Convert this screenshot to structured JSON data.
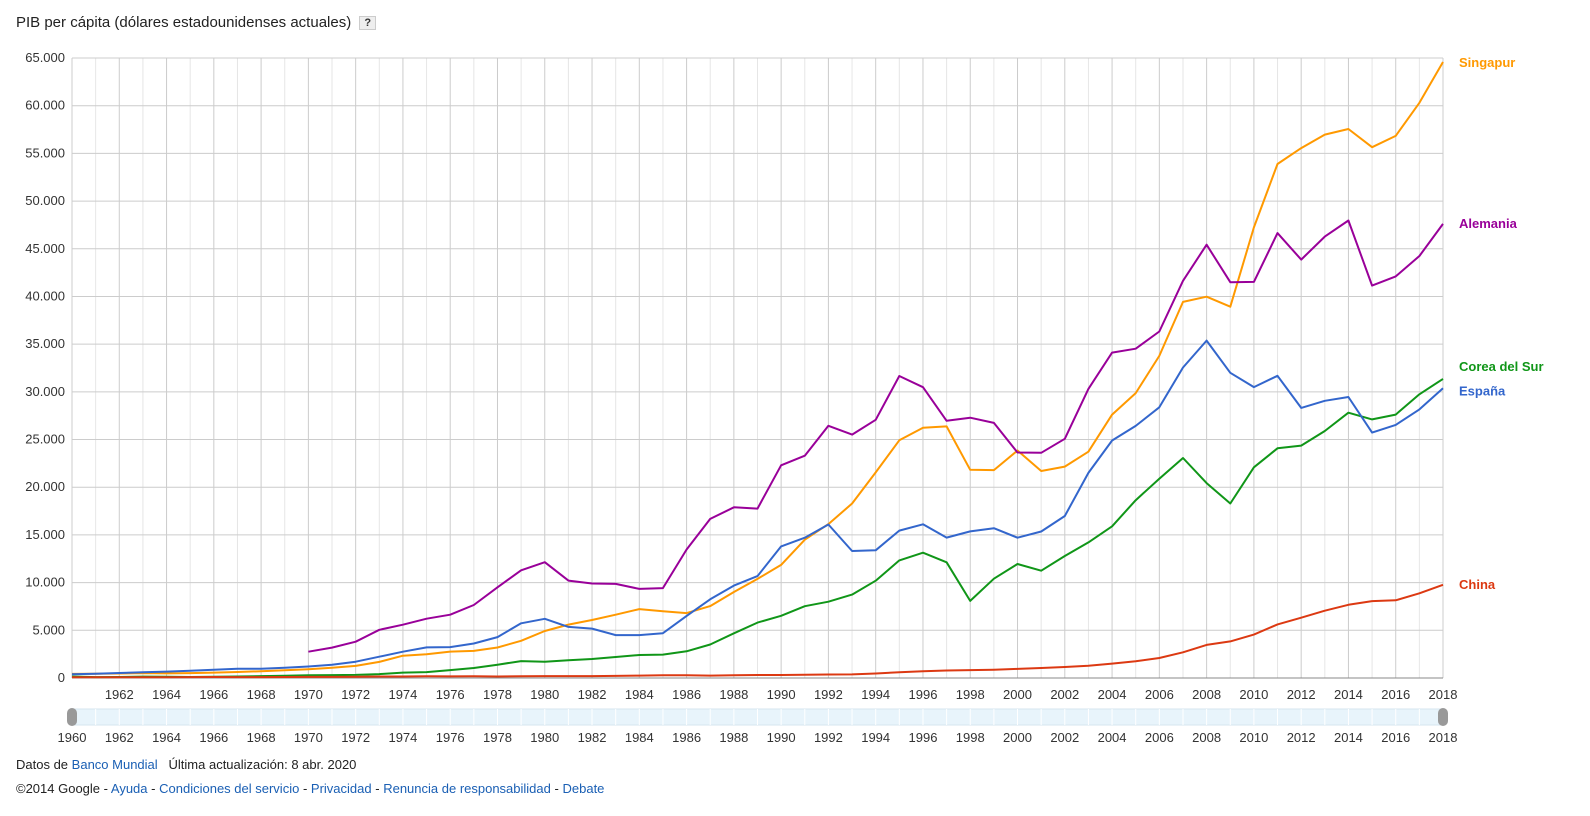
{
  "header": {
    "title": "PIB per cápita (dólares estadounidenses actuales)",
    "help_label": "?"
  },
  "footer": {
    "source_prefix": "Datos de",
    "source_link": "Banco Mundial",
    "updated": "Última actualización: 8 abr. 2020",
    "copyright": "©2014 Google -",
    "links": [
      "Ayuda",
      "Condiciones del servicio",
      "Privacidad",
      "Renuncia de responsabilidad",
      "Debate"
    ],
    "separator": "-"
  },
  "chart_data": {
    "type": "line",
    "grid": true,
    "legend_placement": "right-end-labels",
    "xlim": [
      1960,
      2018
    ],
    "ylim": [
      0,
      65000
    ],
    "x_ticks": [
      "1962",
      "1964",
      "1966",
      "1968",
      "1970",
      "1972",
      "1974",
      "1976",
      "1978",
      "1980",
      "1982",
      "1984",
      "1986",
      "1988",
      "1990",
      "1992",
      "1994",
      "1996",
      "1998",
      "2000",
      "2002",
      "2004",
      "2006",
      "2008",
      "2010",
      "2012",
      "2014",
      "2016",
      "2018"
    ],
    "y_ticks": [
      "0",
      "5.000",
      "10.000",
      "15.000",
      "20.000",
      "25.000",
      "30.000",
      "35.000",
      "40.000",
      "45.000",
      "50.000",
      "55.000",
      "60.000",
      "65.000"
    ],
    "slider_ticks": [
      "1960",
      "1962",
      "1964",
      "1966",
      "1968",
      "1970",
      "1972",
      "1974",
      "1976",
      "1978",
      "1980",
      "1982",
      "1984",
      "1986",
      "1988",
      "1990",
      "1992",
      "1994",
      "1996",
      "1998",
      "2000",
      "2002",
      "2004",
      "2006",
      "2008",
      "2010",
      "2012",
      "2014",
      "2016",
      "2018"
    ],
    "series": [
      {
        "name": "Singapur",
        "color": "#ff9900",
        "start": 1960,
        "values": [
          428,
          449,
          472,
          511,
          485,
          517,
          567,
          626,
          708,
          812,
          925,
          1071,
          1264,
          1685,
          2342,
          2490,
          2770,
          2846,
          3193,
          3900,
          4928,
          5597,
          6077,
          6633,
          7228,
          6993,
          6800,
          7539,
          9017,
          10394,
          11862,
          14502,
          16136,
          18290,
          21553,
          24915,
          26233,
          26375,
          21829,
          21796,
          23853,
          21700,
          22160,
          23730,
          27610,
          29870,
          33770,
          39430,
          39970,
          38930,
          47240,
          53890,
          55550,
          56970,
          57560,
          55650,
          56830,
          60300,
          64580
        ]
      },
      {
        "name": "Alemania",
        "color": "#990099",
        "start": 1970,
        "values": [
          2760,
          3190,
          3810,
          5050,
          5590,
          6220,
          6640,
          7650,
          9510,
          11290,
          12140,
          10210,
          9910,
          9870,
          9340,
          9430,
          13470,
          16680,
          17900,
          17760,
          22300,
          23310,
          26440,
          25520,
          27070,
          31660,
          30490,
          26960,
          27290,
          26740,
          23640,
          23610,
          25080,
          30310,
          34110,
          34520,
          36330,
          41640,
          45430,
          41490,
          41530,
          46640,
          43860,
          46280,
          47960,
          41140,
          42100,
          44240,
          47610
        ]
      },
      {
        "name": "Corea del Sur",
        "color": "#109618",
        "start": 1960,
        "values": [
          158,
          94,
          106,
          146,
          124,
          108,
          133,
          161,
          199,
          243,
          279,
          301,
          323,
          407,
          563,
          615,
          830,
          1051,
          1398,
          1773,
          1704,
          1870,
          1993,
          2199,
          2413,
          2458,
          2803,
          3511,
          4686,
          5811,
          6516,
          7523,
          8001,
          8741,
          10206,
          12333,
          13137,
          12132,
          8085,
          10409,
          11948,
          11253,
          12789,
          14219,
          15908,
          18640,
          20890,
          23060,
          20430,
          18290,
          22090,
          24080,
          24360,
          25890,
          27810,
          27110,
          27610,
          29740,
          31360
        ]
      },
      {
        "name": "España",
        "color": "#3366cc",
        "start": 1960,
        "values": [
          396,
          450,
          520,
          604,
          674,
          754,
          862,
          960,
          965,
          1070,
          1209,
          1383,
          1707,
          2236,
          2757,
          3205,
          3238,
          3613,
          4291,
          5730,
          6209,
          5362,
          5182,
          4493,
          4499,
          4699,
          6515,
          8250,
          9683,
          10680,
          13800,
          14710,
          16090,
          13310,
          13390,
          15450,
          16110,
          14720,
          15370,
          15710,
          14710,
          15360,
          16980,
          21500,
          24900,
          26430,
          28380,
          32550,
          35370,
          32000,
          30500,
          31680,
          28320,
          29060,
          29460,
          25730,
          26530,
          28160,
          30370
        ]
      },
      {
        "name": "China",
        "color": "#dc3912",
        "start": 1960,
        "values": [
          89,
          76,
          70,
          74,
          85,
          98,
          104,
          96,
          91,
          100,
          113,
          118,
          131,
          157,
          160,
          178,
          165,
          185,
          156,
          184,
          195,
          197,
          203,
          225,
          251,
          294,
          282,
          252,
          284,
          311,
          318,
          333,
          366,
          377,
          473,
          610,
          709,
          782,
          829,
          873,
          959,
          1053,
          1149,
          1289,
          1509,
          1753,
          2099,
          2694,
          3468,
          3832,
          4550,
          5618,
          6317,
          7051,
          7679,
          8067,
          8148,
          8879,
          9771
        ]
      }
    ]
  }
}
